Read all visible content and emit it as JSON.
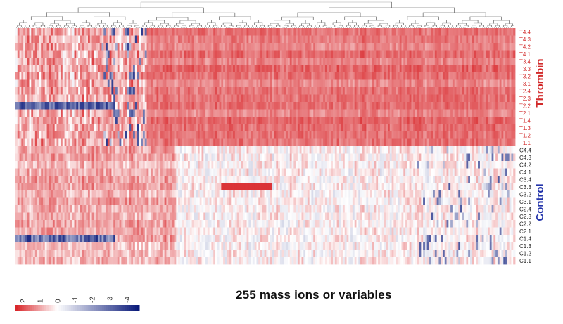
{
  "chart_data": {
    "type": "heatmap",
    "caption": "255 mass ions or variables",
    "num_variables": 255,
    "rows": [
      "T4.4",
      "T4.3",
      "T4.2",
      "T4.1",
      "T3.4",
      "T3.3",
      "T3.2",
      "T3.1",
      "T2.4",
      "T2.3",
      "T2.2",
      "T2.1",
      "T1.4",
      "T1.3",
      "T1.2",
      "T1.1",
      "C4.4",
      "C4.3",
      "C4.2",
      "C4.1",
      "C3.4",
      "C3.3",
      "C3.2",
      "C3.1",
      "C2.4",
      "C2.3",
      "C2.2",
      "C2.1",
      "C1.4",
      "C1.3",
      "C1.2",
      "C1.1"
    ],
    "groups": [
      {
        "name": "Thrombin",
        "first_row": "T4.4",
        "last_row": "T1.1",
        "color": "#d22b2b"
      },
      {
        "name": "Control",
        "first_row": "C4.4",
        "last_row": "C1.1",
        "color": "#2233aa"
      }
    ],
    "color_scale": {
      "ticks": [
        "2",
        "1",
        "0",
        "-1",
        "-2",
        "-3",
        "-4"
      ],
      "low_color": "#d9282c",
      "mid_color": "#ffffff",
      "high_color": "#0a1a7a"
    },
    "dendrogram": "columns"
  }
}
